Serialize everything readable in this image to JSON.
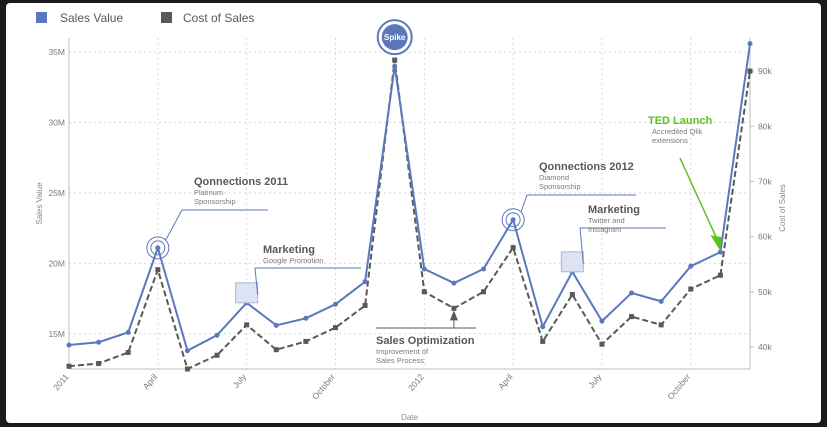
{
  "chart_data": {
    "type": "line",
    "title": "",
    "xlabel": "Date",
    "ylabel": "Sales Value",
    "y2label": "Cost of Sales",
    "ylim": [
      12500000,
      36000000
    ],
    "y2lim": [
      36000,
      96000
    ],
    "yticks": [
      15000000,
      20000000,
      25000000,
      30000000,
      35000000
    ],
    "ytick_labels": [
      "15M",
      "20M",
      "25M",
      "30M",
      "35M"
    ],
    "y2ticks": [
      40000,
      50000,
      60000,
      70000,
      80000,
      90000
    ],
    "y2tick_labels": [
      "40k",
      "50k",
      "60k",
      "70k",
      "80k",
      "90k"
    ],
    "x": [
      "2011-01",
      "2011-02",
      "2011-03",
      "2011-04",
      "2011-05",
      "2011-06",
      "2011-07",
      "2011-08",
      "2011-09",
      "2011-10",
      "2011-11",
      "2011-12",
      "2012-01",
      "2012-02",
      "2012-03",
      "2012-04",
      "2012-05",
      "2012-06",
      "2012-07",
      "2012-08",
      "2012-09",
      "2012-10",
      "2012-11",
      "2012-12"
    ],
    "xticks": [
      {
        "index": 0,
        "label": "2011"
      },
      {
        "index": 3,
        "label": "April"
      },
      {
        "index": 6,
        "label": "July"
      },
      {
        "index": 9,
        "label": "October"
      },
      {
        "index": 12,
        "label": "2012"
      },
      {
        "index": 15,
        "label": "April"
      },
      {
        "index": 18,
        "label": "July"
      },
      {
        "index": 21,
        "label": "October"
      }
    ],
    "series": [
      {
        "name": "Sales Value",
        "axis": "left",
        "color": "#5b78bd",
        "style": "solid",
        "values": [
          14200000,
          14400000,
          15100000,
          21100000,
          13800000,
          14900000,
          17200000,
          15600000,
          16100000,
          17100000,
          18700000,
          34000000,
          19600000,
          18600000,
          19600000,
          23100000,
          15500000,
          19400000,
          15900000,
          17900000,
          17300000,
          19800000,
          20800000,
          35600000
        ]
      },
      {
        "name": "Cost of Sales",
        "axis": "right",
        "color": "#595959",
        "style": "dashed",
        "values": [
          36500,
          37000,
          39000,
          54000,
          36000,
          38500,
          44000,
          39500,
          41000,
          43500,
          47500,
          92000,
          50000,
          47000,
          50000,
          58000,
          41000,
          49500,
          40500,
          45500,
          44000,
          50500,
          53000,
          90000
        ]
      }
    ],
    "legend": {
      "position": "top-left",
      "items": [
        "Sales Value",
        "Cost of Sales"
      ]
    },
    "annotations": [
      {
        "index": 3,
        "title": "Qonnections 2011",
        "subtitle": [
          "Platinum",
          "Sponsorship"
        ],
        "marker": "double-circle"
      },
      {
        "index": 6,
        "title": "Marketing",
        "subtitle": [
          "Google Promotion"
        ],
        "marker": "square"
      },
      {
        "index": 11,
        "title": "Spike",
        "subtitle": [],
        "marker": "badge"
      },
      {
        "index": 13,
        "title": "Sales Optimization",
        "subtitle": [
          "Improvement of",
          "Sales Process"
        ],
        "marker": "arrow-up"
      },
      {
        "index": 15,
        "title": "Qonnections 2012",
        "subtitle": [
          "Diamond",
          "Sponsorship"
        ],
        "marker": "double-circle"
      },
      {
        "index": 17,
        "title": "Marketing",
        "subtitle": [
          "Twitter and",
          "Instagram"
        ],
        "marker": "square"
      },
      {
        "index": 22,
        "title": "TED Launch",
        "subtitle": [
          "Accredited Qlik",
          "extensions"
        ],
        "marker": "green-arrow",
        "color": "#5cc21f"
      }
    ]
  }
}
